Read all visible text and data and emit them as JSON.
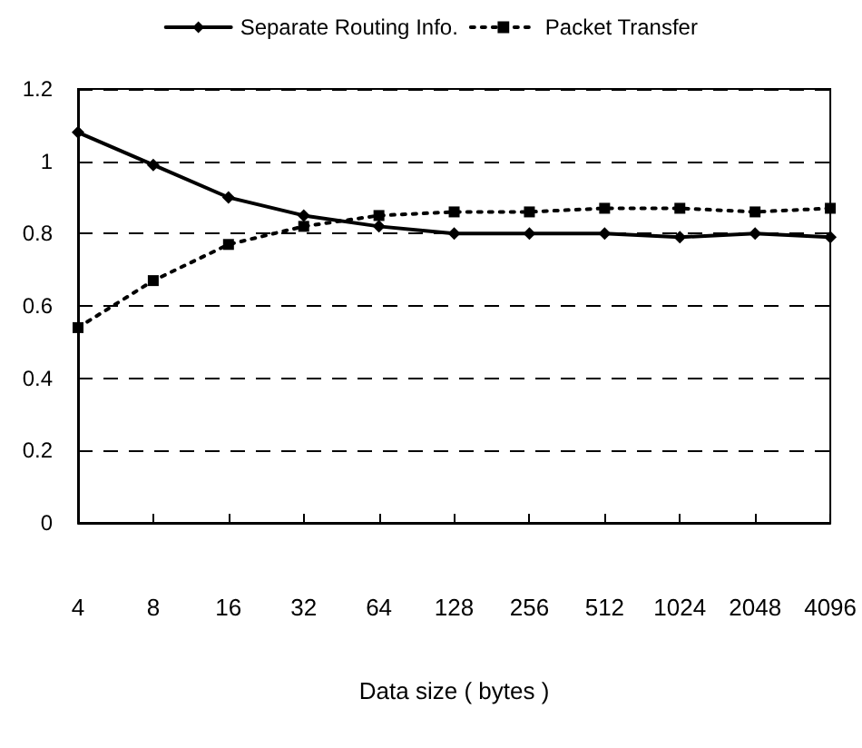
{
  "chart_data": {
    "type": "line",
    "xlabel": "Data size ( bytes )",
    "categories": [
      "4",
      "8",
      "16",
      "32",
      "64",
      "128",
      "256",
      "512",
      "1024",
      "2048",
      "4096"
    ],
    "series": [
      {
        "name": "Separate Routing Info.",
        "color": "#000000",
        "marker": "diamond",
        "line_style": "solid",
        "values": [
          1.08,
          0.99,
          0.9,
          0.85,
          0.82,
          0.8,
          0.8,
          0.8,
          0.79,
          0.8,
          0.79
        ]
      },
      {
        "name": "Packet Transfer",
        "color": "#000000",
        "marker": "square",
        "line_style": "dotted",
        "values": [
          0.54,
          0.67,
          0.77,
          0.82,
          0.85,
          0.86,
          0.86,
          0.87,
          0.87,
          0.86,
          0.87
        ]
      }
    ],
    "ylim": [
      0,
      1.2
    ],
    "yticks": [
      0,
      0.2,
      0.4,
      0.6,
      0.8,
      1,
      1.2
    ],
    "grid": "y",
    "legend": "top"
  }
}
